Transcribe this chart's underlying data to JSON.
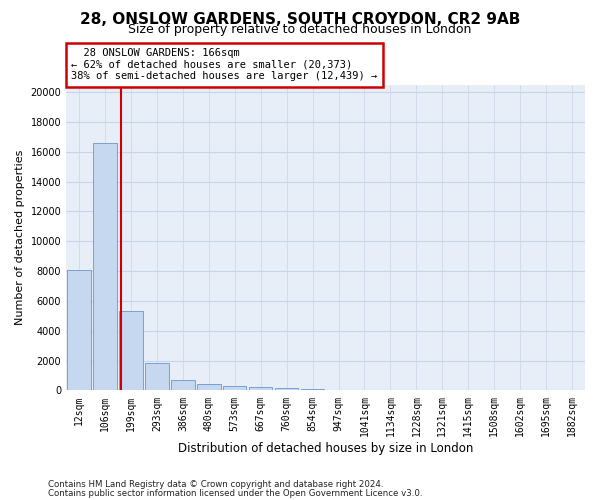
{
  "title_line1": "28, ONSLOW GARDENS, SOUTH CROYDON, CR2 9AB",
  "title_line2": "Size of property relative to detached houses in London",
  "xlabel": "Distribution of detached houses by size in London",
  "ylabel": "Number of detached properties",
  "bar_values": [
    8100,
    16600,
    5350,
    1850,
    680,
    420,
    310,
    210,
    160,
    90,
    60,
    45,
    35,
    25,
    18,
    14,
    10,
    8,
    6,
    4
  ],
  "bar_labels": [
    "12sqm",
    "106sqm",
    "199sqm",
    "293sqm",
    "386sqm",
    "480sqm",
    "573sqm",
    "667sqm",
    "760sqm",
    "854sqm",
    "947sqm",
    "1041sqm",
    "1134sqm",
    "1228sqm",
    "1321sqm",
    "1415sqm",
    "1508sqm",
    "1602sqm",
    "1695sqm",
    "1882sqm"
  ],
  "bar_color": "#c5d8f0",
  "bar_edge_color": "#6699cc",
  "annotation_box_color": "#cc0000",
  "annotation_fill": "#ffffff",
  "property_size_label": "28 ONSLOW GARDENS: 166sqm",
  "pct_smaller": "62% of detached houses are smaller (20,373)",
  "pct_larger": "38% of semi-detached houses are larger (12,439)",
  "vline_x_index": 1.62,
  "ylim": [
    0,
    20500
  ],
  "yticks": [
    0,
    2000,
    4000,
    6000,
    8000,
    10000,
    12000,
    14000,
    16000,
    18000,
    20000
  ],
  "grid_color": "#c8d4e8",
  "background_color": "#e8eef8",
  "footnote1": "Contains HM Land Registry data © Crown copyright and database right 2024.",
  "footnote2": "Contains public sector information licensed under the Open Government Licence v3.0.",
  "title_fontsize": 11,
  "subtitle_fontsize": 9,
  "tick_fontsize": 7,
  "ylabel_fontsize": 8,
  "xlabel_fontsize": 8.5
}
